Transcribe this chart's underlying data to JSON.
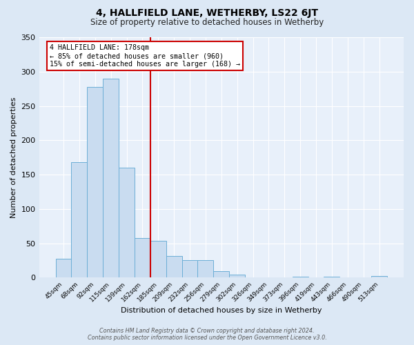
{
  "title": "4, HALLFIELD LANE, WETHERBY, LS22 6JT",
  "subtitle": "Size of property relative to detached houses in Wetherby",
  "xlabel": "Distribution of detached houses by size in Wetherby",
  "ylabel": "Number of detached properties",
  "bin_labels": [
    "45sqm",
    "68sqm",
    "92sqm",
    "115sqm",
    "139sqm",
    "162sqm",
    "185sqm",
    "209sqm",
    "232sqm",
    "256sqm",
    "279sqm",
    "302sqm",
    "326sqm",
    "349sqm",
    "373sqm",
    "396sqm",
    "419sqm",
    "443sqm",
    "466sqm",
    "490sqm",
    "513sqm"
  ],
  "bar_heights": [
    28,
    168,
    278,
    290,
    160,
    58,
    54,
    32,
    26,
    26,
    10,
    5,
    0,
    0,
    0,
    2,
    0,
    2,
    0,
    0,
    3
  ],
  "bar_color": "#c9dcf0",
  "bar_edge_color": "#6baed6",
  "vline_color": "#cc0000",
  "annotation_title": "4 HALLFIELD LANE: 178sqm",
  "annotation_line1": "← 85% of detached houses are smaller (960)",
  "annotation_line2": "15% of semi-detached houses are larger (168) →",
  "annotation_box_color": "#ffffff",
  "annotation_box_edge_color": "#cc0000",
  "ylim": [
    0,
    350
  ],
  "yticks": [
    0,
    50,
    100,
    150,
    200,
    250,
    300,
    350
  ],
  "footer1": "Contains HM Land Registry data © Crown copyright and database right 2024.",
  "footer2": "Contains public sector information licensed under the Open Government Licence v3.0.",
  "bg_color": "#dce8f5",
  "plot_bg_color": "#e8f0fa"
}
